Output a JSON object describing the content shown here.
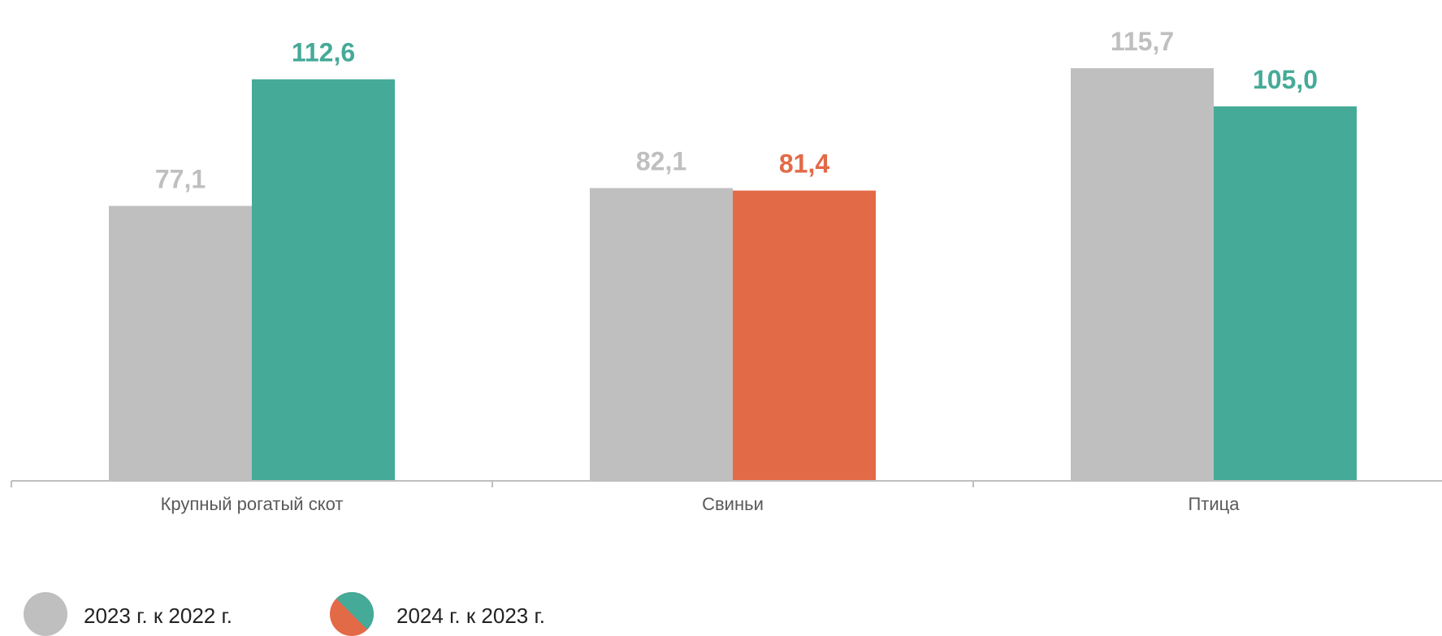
{
  "chart_data": {
    "type": "bar",
    "categories": [
      "Крупный рогатый скот",
      "Свиньи",
      "Птица"
    ],
    "series": [
      {
        "name": "2023 г. к 2022 г.",
        "values": [
          77.1,
          82.1,
          115.7
        ],
        "labels": [
          "77,1",
          "82,1",
          "115,7"
        ],
        "colors": [
          "#bfbfbf",
          "#bfbfbf",
          "#bfbfbf"
        ]
      },
      {
        "name": "2024 г. к 2023 г.",
        "values": [
          112.6,
          81.4,
          105.0
        ],
        "labels": [
          "112,6",
          "81,4",
          "105,0"
        ],
        "colors": [
          "#45aa98",
          "#e36a47",
          "#45aa98"
        ]
      }
    ],
    "ylim": [
      0,
      128
    ],
    "grid": false,
    "legend_position": "bottom-left"
  },
  "colors": {
    "gray": "#bfbfbf",
    "green": "#45aa98",
    "orange": "#e36a47",
    "axis": "#bfbfbf"
  }
}
